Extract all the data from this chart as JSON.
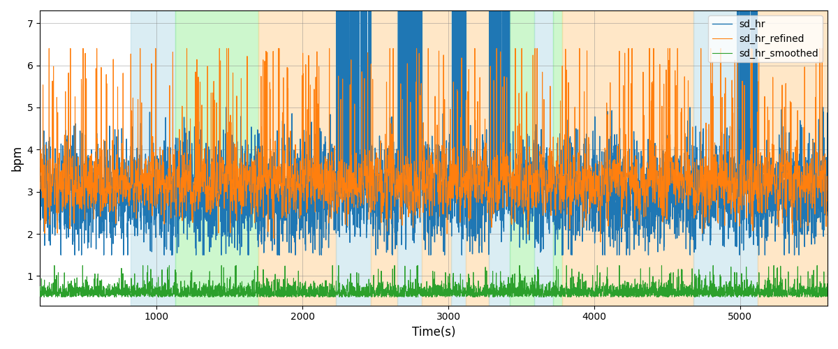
{
  "title": "",
  "xlabel": "Time(s)",
  "ylabel": "bpm",
  "xlim": [
    200,
    5600
  ],
  "ylim": [
    0.3,
    7.3
  ],
  "yticks": [
    1,
    2,
    3,
    4,
    5,
    6,
    7
  ],
  "bg_bands": [
    {
      "xmin": 820,
      "xmax": 1130,
      "color": "#add8e6",
      "alpha": 0.45
    },
    {
      "xmin": 1130,
      "xmax": 1700,
      "color": "#90ee90",
      "alpha": 0.45
    },
    {
      "xmin": 1700,
      "xmax": 2230,
      "color": "#ffd59a",
      "alpha": 0.55
    },
    {
      "xmin": 2230,
      "xmax": 2470,
      "color": "#add8e6",
      "alpha": 0.45
    },
    {
      "xmin": 2470,
      "xmax": 2650,
      "color": "#ffd59a",
      "alpha": 0.55
    },
    {
      "xmin": 2650,
      "xmax": 2820,
      "color": "#add8e6",
      "alpha": 0.45
    },
    {
      "xmin": 2820,
      "xmax": 3020,
      "color": "#ffd59a",
      "alpha": 0.55
    },
    {
      "xmin": 3020,
      "xmax": 3120,
      "color": "#add8e6",
      "alpha": 0.45
    },
    {
      "xmin": 3120,
      "xmax": 3280,
      "color": "#ffd59a",
      "alpha": 0.55
    },
    {
      "xmin": 3280,
      "xmax": 3420,
      "color": "#add8e6",
      "alpha": 0.45
    },
    {
      "xmin": 3420,
      "xmax": 3590,
      "color": "#90ee90",
      "alpha": 0.45
    },
    {
      "xmin": 3590,
      "xmax": 3720,
      "color": "#add8e6",
      "alpha": 0.45
    },
    {
      "xmin": 3720,
      "xmax": 3780,
      "color": "#90ee90",
      "alpha": 0.45
    },
    {
      "xmin": 3780,
      "xmax": 4680,
      "color": "#ffd59a",
      "alpha": 0.55
    },
    {
      "xmin": 4680,
      "xmax": 5120,
      "color": "#add8e6",
      "alpha": 0.45
    },
    {
      "xmin": 5120,
      "xmax": 5600,
      "color": "#ffd59a",
      "alpha": 0.55
    }
  ],
  "line_colors": {
    "sd_hr": "#1f77b4",
    "sd_hr_refined": "#ff7f0e",
    "sd_hr_smoothed": "#2ca02c"
  },
  "line_widths": {
    "sd_hr": 1.0,
    "sd_hr_refined": 0.8,
    "sd_hr_smoothed": 0.8
  },
  "spike_clusters_hr": [
    {
      "xmin": 2230,
      "xmax": 2470,
      "density": 0.35
    },
    {
      "xmin": 2650,
      "xmax": 2820,
      "density": 0.4
    },
    {
      "xmin": 3020,
      "xmax": 3120,
      "density": 0.45
    },
    {
      "xmin": 3280,
      "xmax": 3420,
      "density": 0.35
    },
    {
      "xmin": 4980,
      "xmax": 5120,
      "density": 0.3
    }
  ],
  "legend_loc": "upper right",
  "grid": true,
  "figsize": [
    12,
    5
  ],
  "dpi": 100
}
